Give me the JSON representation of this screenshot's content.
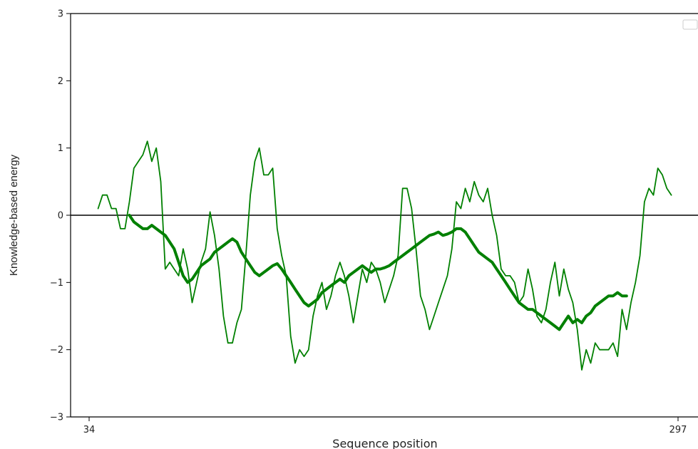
{
  "chart_data": {
    "type": "line",
    "xlabel": "Sequence position",
    "ylabel": "Knowledge-based energy",
    "xlim": [
      34,
      297
    ],
    "ylim": [
      -3,
      3
    ],
    "x_ticks": [
      34,
      297
    ],
    "y_ticks": [
      -3,
      -2,
      -1,
      0,
      1,
      2,
      3
    ],
    "y_tick_labels": [
      "−3",
      "−2",
      "−1",
      "0",
      "1",
      "2",
      "3"
    ],
    "reference_line_y": 0,
    "legend": {
      "position": "upper right",
      "entries": []
    },
    "grid": false,
    "series": [
      {
        "style": "thin",
        "color": "#008000",
        "x": [
          38,
          40,
          42,
          44,
          46,
          48,
          50,
          52,
          54,
          56,
          58,
          60,
          62,
          64,
          66,
          68,
          70,
          72,
          74,
          76,
          78,
          80,
          82,
          84,
          86,
          88,
          90,
          92,
          94,
          96,
          98,
          100,
          102,
          104,
          106,
          108,
          110,
          112,
          114,
          116,
          118,
          120,
          122,
          124,
          126,
          128,
          130,
          132,
          134,
          136,
          138,
          140,
          142,
          144,
          146,
          148,
          150,
          152,
          154,
          156,
          158,
          160,
          162,
          164,
          166,
          168,
          170,
          172,
          174,
          176,
          178,
          180,
          182,
          184,
          186,
          188,
          190,
          192,
          194,
          196,
          198,
          200,
          202,
          204,
          206,
          208,
          210,
          212,
          214,
          216,
          218,
          220,
          222,
          224,
          226,
          228,
          230,
          232,
          234,
          236,
          238,
          240,
          242,
          244,
          246,
          248,
          250,
          252,
          254,
          256,
          258,
          260,
          262,
          264,
          266,
          268,
          270,
          272,
          274,
          276,
          278,
          280,
          282,
          284,
          286,
          288,
          290,
          292,
          294
        ],
        "y": [
          0.1,
          0.3,
          0.3,
          0.1,
          0.1,
          -0.2,
          -0.2,
          0.2,
          0.7,
          0.8,
          0.9,
          1.1,
          0.8,
          1.0,
          0.5,
          -0.8,
          -0.7,
          -0.8,
          -0.9,
          -0.5,
          -0.8,
          -1.3,
          -1.0,
          -0.7,
          -0.5,
          0.05,
          -0.3,
          -0.8,
          -1.5,
          -1.9,
          -1.9,
          -1.6,
          -1.4,
          -0.6,
          0.3,
          0.8,
          1.0,
          0.6,
          0.6,
          0.7,
          -0.2,
          -0.6,
          -0.9,
          -1.8,
          -2.2,
          -2.0,
          -2.1,
          -2.0,
          -1.5,
          -1.2,
          -1.0,
          -1.4,
          -1.2,
          -0.9,
          -0.7,
          -0.9,
          -1.2,
          -1.6,
          -1.2,
          -0.8,
          -1.0,
          -0.7,
          -0.8,
          -1.0,
          -1.3,
          -1.1,
          -0.9,
          -0.6,
          0.4,
          0.4,
          0.1,
          -0.5,
          -1.2,
          -1.4,
          -1.7,
          -1.5,
          -1.3,
          -1.1,
          -0.9,
          -0.5,
          0.2,
          0.1,
          0.4,
          0.2,
          0.5,
          0.3,
          0.2,
          0.4,
          0.0,
          -0.3,
          -0.8,
          -0.9,
          -0.9,
          -1.0,
          -1.3,
          -1.2,
          -0.8,
          -1.1,
          -1.5,
          -1.6,
          -1.4,
          -1.0,
          -0.7,
          -1.2,
          -0.8,
          -1.1,
          -1.3,
          -1.7,
          -2.3,
          -2.0,
          -2.2,
          -1.9,
          -2.0,
          -2.0,
          -2.0,
          -1.9,
          -2.1,
          -1.4,
          -1.7,
          -1.3,
          -1.0,
          -0.6,
          0.2,
          0.4,
          0.3,
          0.7,
          0.6,
          0.4,
          0.3
        ]
      },
      {
        "style": "thick",
        "color": "#008000",
        "x": [
          52,
          54,
          56,
          58,
          60,
          62,
          64,
          66,
          68,
          70,
          72,
          74,
          76,
          78,
          80,
          82,
          84,
          86,
          88,
          90,
          92,
          94,
          96,
          98,
          100,
          102,
          104,
          106,
          108,
          110,
          112,
          114,
          116,
          118,
          120,
          122,
          124,
          126,
          128,
          130,
          132,
          134,
          136,
          138,
          140,
          142,
          144,
          146,
          148,
          150,
          152,
          154,
          156,
          158,
          160,
          162,
          164,
          166,
          168,
          170,
          172,
          174,
          176,
          178,
          180,
          182,
          184,
          186,
          188,
          190,
          192,
          194,
          196,
          198,
          200,
          202,
          204,
          206,
          208,
          210,
          212,
          214,
          216,
          218,
          220,
          222,
          224,
          226,
          228,
          230,
          232,
          234,
          236,
          238,
          240,
          242,
          244,
          246,
          248,
          250,
          252,
          254,
          256,
          258,
          260,
          262,
          264,
          266,
          268,
          270,
          272,
          274
        ],
        "y": [
          0.0,
          -0.1,
          -0.15,
          -0.2,
          -0.2,
          -0.15,
          -0.2,
          -0.25,
          -0.3,
          -0.4,
          -0.5,
          -0.7,
          -0.9,
          -1.0,
          -0.95,
          -0.85,
          -0.75,
          -0.7,
          -0.65,
          -0.55,
          -0.5,
          -0.45,
          -0.4,
          -0.35,
          -0.4,
          -0.55,
          -0.65,
          -0.75,
          -0.85,
          -0.9,
          -0.85,
          -0.8,
          -0.75,
          -0.72,
          -0.8,
          -0.9,
          -1.0,
          -1.1,
          -1.2,
          -1.3,
          -1.35,
          -1.3,
          -1.25,
          -1.15,
          -1.1,
          -1.05,
          -1.0,
          -0.95,
          -1.0,
          -0.9,
          -0.85,
          -0.8,
          -0.75,
          -0.8,
          -0.85,
          -0.8,
          -0.8,
          -0.78,
          -0.75,
          -0.7,
          -0.65,
          -0.6,
          -0.55,
          -0.5,
          -0.45,
          -0.4,
          -0.35,
          -0.3,
          -0.28,
          -0.25,
          -0.3,
          -0.28,
          -0.25,
          -0.2,
          -0.2,
          -0.25,
          -0.35,
          -0.45,
          -0.55,
          -0.6,
          -0.65,
          -0.7,
          -0.8,
          -0.9,
          -1.0,
          -1.1,
          -1.2,
          -1.3,
          -1.35,
          -1.4,
          -1.4,
          -1.45,
          -1.5,
          -1.55,
          -1.6,
          -1.65,
          -1.7,
          -1.6,
          -1.5,
          -1.6,
          -1.55,
          -1.6,
          -1.5,
          -1.45,
          -1.35,
          -1.3,
          -1.25,
          -1.2,
          -1.2,
          -1.15,
          -1.2,
          -1.2
        ]
      }
    ]
  }
}
